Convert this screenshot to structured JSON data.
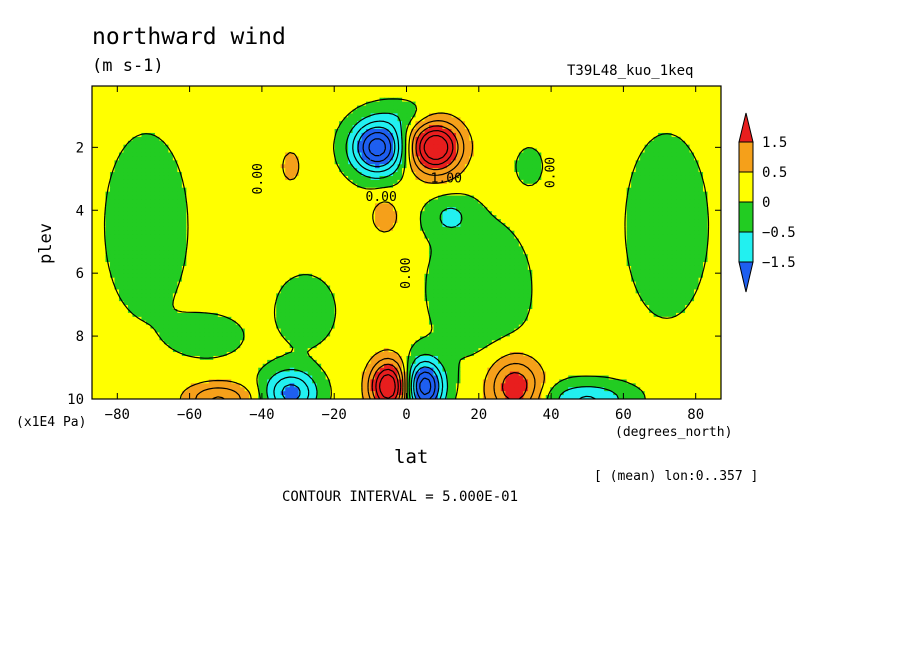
{
  "header": {
    "title": "northward wind",
    "units": "(m s-1)",
    "run": "T39L48_kuo_1keq"
  },
  "footer": {
    "mean_note": "[ (mean) lon:0..357 ]",
    "contour_interval": "CONTOUR INTERVAL = 5.000E-01"
  },
  "colors": {
    "strong_pos": "#e81e1e",
    "pos": "#f5a01a",
    "weak_pos": "#ffff00",
    "weak_neg": "#22cc22",
    "neg": "#22f0f0",
    "strong_neg": "#1e5ff0"
  },
  "chart_data": {
    "type": "contour",
    "variable": "northward wind",
    "xlabel": "lat",
    "x_units": "(degrees_north)",
    "ylabel": "plev",
    "y_units": "(x1E4 Pa)",
    "xlim": [
      -87,
      87
    ],
    "ylim": [
      10,
      0.05
    ],
    "y_inverted": true,
    "x_ticks": [
      -80,
      -60,
      -40,
      -20,
      0,
      20,
      40,
      60,
      80
    ],
    "y_ticks": [
      2,
      4,
      6,
      8,
      10
    ],
    "contour_interval": 0.5,
    "colorbar": {
      "levels": [
        -1.5,
        -0.5,
        0,
        0.5,
        1.5
      ],
      "level_labels": [
        "1.5",
        "0.5",
        "0",
        "-0.5",
        "-1.5"
      ],
      "classes": [
        "< -1.5",
        "-1.5..-0.5",
        "-0.5..0",
        "0..0.5",
        "0.5..1.5",
        "> 1.5"
      ]
    },
    "contour_labels": [
      {
        "text": "0.00",
        "lat": -41,
        "plev": 3.0,
        "rotate": -90
      },
      {
        "text": "0.00",
        "lat": 40,
        "plev": 2.8,
        "rotate": -90
      },
      {
        "text": "0.00",
        "lat": -7,
        "plev": 3.6,
        "rotate": 0
      },
      {
        "text": "1.00",
        "lat": 11,
        "plev": 3.0,
        "rotate": 0
      },
      {
        "text": "0.00",
        "lat": 0,
        "plev": 6.0,
        "rotate": -90
      }
    ],
    "features": [
      {
        "region": "upper tropics south",
        "lat": -8,
        "plev": 2.0,
        "sign": "negative",
        "peak": -2.5
      },
      {
        "region": "upper tropics north",
        "lat": 8,
        "plev": 2.0,
        "sign": "positive",
        "peak": 2.5
      },
      {
        "region": "surface tropics south",
        "lat": -5,
        "plev": 9.5,
        "sign": "positive",
        "peak": 2.5
      },
      {
        "region": "surface tropics north",
        "lat": 5,
        "plev": 9.5,
        "sign": "negative",
        "peak": -2.5
      },
      {
        "region": "surface subtropics south",
        "lat": -32,
        "plev": 9.7,
        "sign": "negative",
        "peak": -1.5
      },
      {
        "region": "surface subtropics north",
        "lat": 30,
        "plev": 9.5,
        "sign": "positive",
        "peak": 1.5
      },
      {
        "region": "surface midlatitude south",
        "lat": -52,
        "plev": 9.9,
        "sign": "positive",
        "peak": 1.0
      },
      {
        "region": "surface midlatitude north",
        "lat": 50,
        "plev": 9.9,
        "sign": "negative",
        "peak": -0.8
      }
    ]
  }
}
